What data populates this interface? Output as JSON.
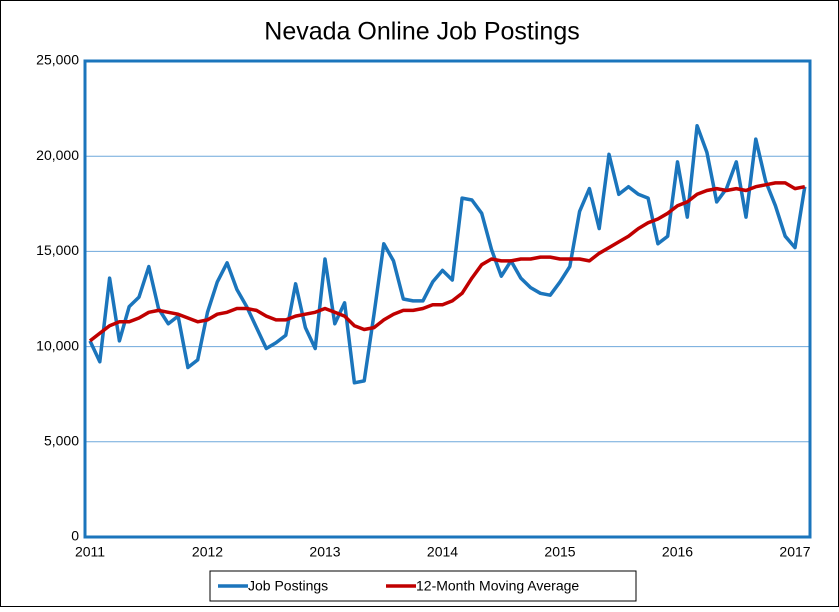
{
  "chart_data": {
    "type": "line",
    "title": "Nevada Online Job Postings",
    "categories": [
      "2011",
      null,
      null,
      null,
      null,
      null,
      null,
      null,
      null,
      null,
      null,
      null,
      "2012",
      null,
      null,
      null,
      null,
      null,
      null,
      null,
      null,
      null,
      null,
      null,
      "2013",
      null,
      null,
      null,
      null,
      null,
      null,
      null,
      null,
      null,
      null,
      null,
      "2014",
      null,
      null,
      null,
      null,
      null,
      null,
      null,
      null,
      null,
      null,
      null,
      "2015",
      null,
      null,
      null,
      null,
      null,
      null,
      null,
      null,
      null,
      null,
      null,
      "2016",
      null,
      null,
      null,
      null,
      null,
      null,
      null,
      null,
      null,
      null,
      null,
      "2017",
      null
    ],
    "series": [
      {
        "name": "Job Postings",
        "color": "#1b75bc",
        "values": [
          10300,
          9200,
          13600,
          10300,
          12100,
          12600,
          14200,
          12000,
          11200,
          11600,
          8900,
          9300,
          11800,
          13400,
          14400,
          13000,
          12100,
          11000,
          9900,
          10200,
          10600,
          13300,
          11000,
          9900,
          14600,
          11200,
          12300,
          8100,
          8200,
          11700,
          15400,
          14500,
          12500,
          12400,
          12400,
          13400,
          14000,
          13500,
          17800,
          17700,
          17000,
          15100,
          13700,
          14500,
          13600,
          13100,
          12800,
          12700,
          13400,
          14200,
          17100,
          18300,
          16200,
          20100,
          18000,
          18400,
          18000,
          17800,
          15400,
          15800,
          19700,
          16800,
          21600,
          20200,
          17600,
          18300,
          19700,
          16800,
          20900,
          18700,
          17400,
          15800,
          15200,
          18400
        ]
      },
      {
        "name": "12-Month Moving Average",
        "color": "#c00000",
        "values": [
          10300,
          10700,
          11100,
          11300,
          11300,
          11500,
          11800,
          11900,
          11800,
          11700,
          11500,
          11300,
          11400,
          11700,
          11800,
          12000,
          12000,
          11900,
          11600,
          11400,
          11400,
          11600,
          11700,
          11800,
          12000,
          11800,
          11600,
          11100,
          10900,
          11000,
          11400,
          11700,
          11900,
          11900,
          12000,
          12200,
          12200,
          12400,
          12800,
          13600,
          14300,
          14600,
          14500,
          14500,
          14600,
          14600,
          14700,
          14700,
          14600,
          14600,
          14600,
          14500,
          14900,
          15200,
          15500,
          15800,
          16200,
          16500,
          16700,
          17000,
          17400,
          17600,
          18000,
          18200,
          18300,
          18200,
          18300,
          18200,
          18400,
          18500,
          18600,
          18600,
          18300,
          18400
        ]
      }
    ],
    "ylim": [
      0,
      25000
    ],
    "yticks": [
      0,
      {
        "value": 5000,
        "label": "5,000"
      },
      {
        "value": 10000,
        "label": "10,000"
      },
      {
        "value": 15000,
        "label": "15,000"
      },
      {
        "value": 20000,
        "label": "20,000"
      },
      {
        "value": 25000,
        "label": "25,000"
      }
    ],
    "grid": true,
    "legend": "bottom"
  }
}
